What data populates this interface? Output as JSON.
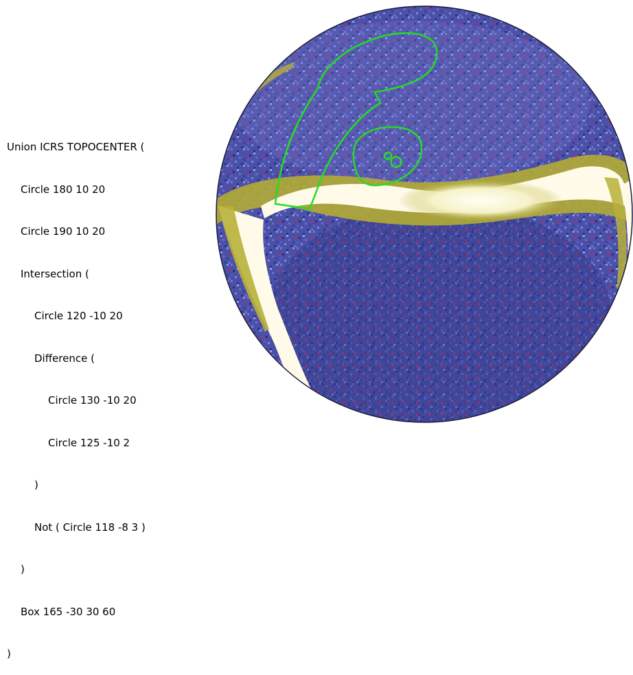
{
  "code": {
    "lines": [
      {
        "indent": 0,
        "text": "Union ICRS TOPOCENTER ("
      },
      {
        "indent": 1,
        "text": "Circle 180 10 20"
      },
      {
        "indent": 1,
        "text": "Circle 190 10 20"
      },
      {
        "indent": 1,
        "text": "Intersection ("
      },
      {
        "indent": 2,
        "text": "Circle 120 -10 20"
      },
      {
        "indent": 2,
        "text": "Difference ("
      },
      {
        "indent": 3,
        "text": "Circle 130 -10 20"
      },
      {
        "indent": 3,
        "text": "Circle 125 -10 2"
      },
      {
        "indent": 2,
        "text": ")"
      },
      {
        "indent": 2,
        "text": "Not ( Circle 118 -8 3 )"
      },
      {
        "indent": 1,
        "text": ")"
      },
      {
        "indent": 1,
        "text": "Box 165 -30 30 60"
      },
      {
        "indent": 0,
        "text": ")"
      }
    ]
  },
  "colors": {
    "sky_dark": "#2a2f7a",
    "sky_mid": "#5a60b8",
    "sky_light": "#8a90d8",
    "milky_way_core": "#fffbe8",
    "milky_way_edge": "#b8b03a",
    "region_outline": "#22dd22",
    "disk_border": "#1a1a3a"
  },
  "figure": {
    "description_icon": "all-sky-map-icon"
  }
}
